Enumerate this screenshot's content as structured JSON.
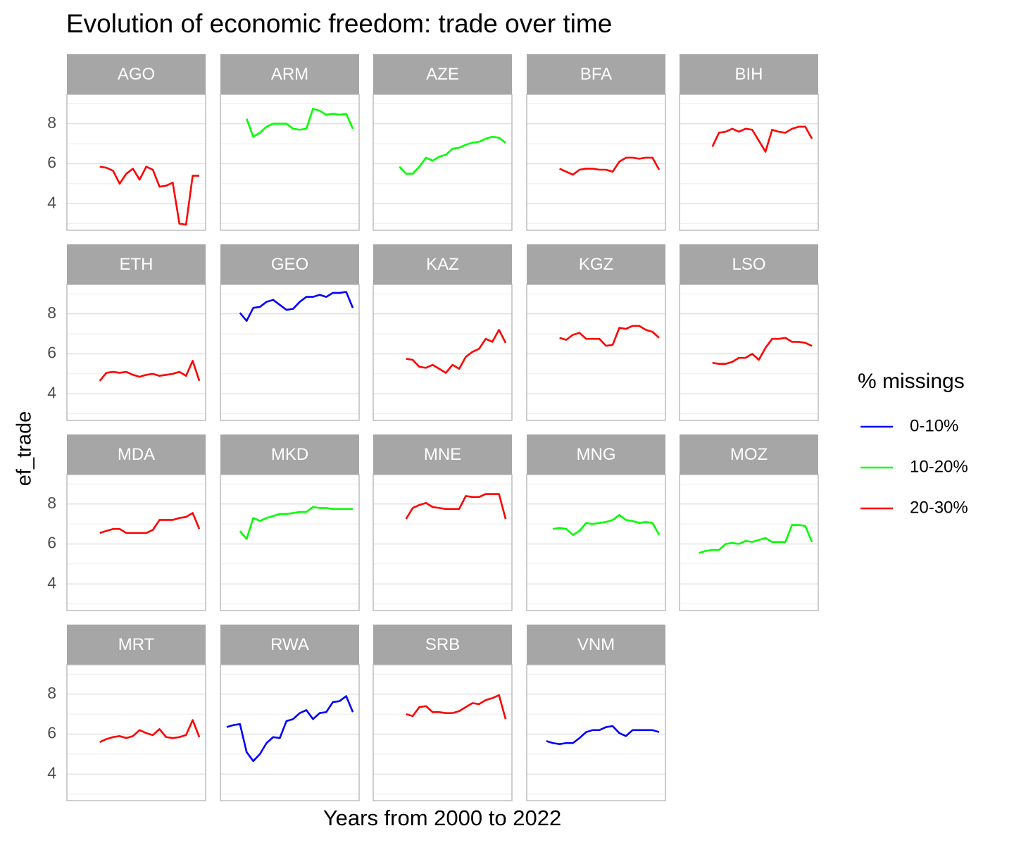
{
  "chart_data": {
    "type": "line",
    "title": "Evolution of economic freedom: trade over time",
    "xlabel": "Years from 2000 to 2022",
    "ylabel": "ef_trade",
    "legend_title": "% missings",
    "legend": [
      {
        "name": "0-10%",
        "color": "#0000ff"
      },
      {
        "name": "10-20%",
        "color": "#00ff00"
      },
      {
        "name": "20-30%",
        "color": "#ff0000"
      }
    ],
    "xlim": [
      2002.05,
      2022.95
    ],
    "ylim": [
      2.67,
      9.47
    ],
    "yticks": [
      4,
      6,
      8
    ],
    "yticks_minor": [
      3,
      5,
      7,
      9
    ],
    "grid": true,
    "panels": [
      {
        "name": "AGO",
        "color": "#ff0000",
        "x": [
          2007,
          2008,
          2009,
          2010,
          2011,
          2012,
          2013,
          2014,
          2015,
          2016,
          2017,
          2018,
          2019,
          2020,
          2021,
          2022
        ],
        "values": [
          5.85,
          5.8,
          5.65,
          5.0,
          5.5,
          5.75,
          5.2,
          5.85,
          5.7,
          4.85,
          4.9,
          5.05,
          3.0,
          2.95,
          5.4,
          5.4
        ]
      },
      {
        "name": "ARM",
        "color": "#00ff00",
        "x": [
          2006,
          2007,
          2008,
          2009,
          2010,
          2011,
          2012,
          2013,
          2014,
          2015,
          2016,
          2017,
          2018,
          2019,
          2020,
          2021,
          2022
        ],
        "values": [
          8.25,
          7.35,
          7.55,
          7.85,
          8.0,
          8.0,
          8.0,
          7.75,
          7.7,
          7.75,
          8.75,
          8.65,
          8.45,
          8.5,
          8.45,
          8.5,
          7.75
        ]
      },
      {
        "name": "AZE",
        "color": "#00ff00",
        "x": [
          2006,
          2007,
          2008,
          2009,
          2010,
          2011,
          2012,
          2013,
          2014,
          2015,
          2016,
          2017,
          2018,
          2019,
          2020,
          2021,
          2022
        ],
        "values": [
          5.85,
          5.5,
          5.5,
          5.85,
          6.3,
          6.15,
          6.35,
          6.45,
          6.75,
          6.8,
          6.95,
          7.05,
          7.1,
          7.25,
          7.35,
          7.3,
          7.05
        ]
      },
      {
        "name": "BFA",
        "color": "#ff0000",
        "x": [
          2007,
          2008,
          2009,
          2010,
          2011,
          2012,
          2013,
          2014,
          2015,
          2016,
          2017,
          2018,
          2019,
          2020,
          2021,
          2022
        ],
        "values": [
          5.75,
          5.6,
          5.45,
          5.7,
          5.75,
          5.75,
          5.7,
          5.7,
          5.6,
          6.1,
          6.3,
          6.3,
          6.25,
          6.3,
          6.3,
          5.7
        ]
      },
      {
        "name": "BIH",
        "color": "#ff0000",
        "x": [
          2007,
          2008,
          2009,
          2010,
          2011,
          2012,
          2013,
          2014,
          2015,
          2016,
          2017,
          2018,
          2019,
          2020,
          2021,
          2022
        ],
        "values": [
          6.85,
          7.55,
          7.6,
          7.75,
          7.6,
          7.75,
          7.7,
          7.15,
          6.6,
          7.7,
          7.6,
          7.55,
          7.75,
          7.85,
          7.85,
          7.25
        ]
      },
      {
        "name": "ETH",
        "color": "#ff0000",
        "x": [
          2007,
          2008,
          2009,
          2010,
          2011,
          2012,
          2013,
          2014,
          2015,
          2016,
          2017,
          2018,
          2019,
          2020,
          2021,
          2022
        ],
        "values": [
          4.65,
          5.05,
          5.1,
          5.05,
          5.1,
          4.95,
          4.85,
          4.95,
          5.0,
          4.9,
          4.95,
          5.0,
          5.1,
          4.9,
          5.65,
          4.65
        ]
      },
      {
        "name": "GEO",
        "color": "#0000ff",
        "x": [
          2005,
          2006,
          2007,
          2008,
          2009,
          2010,
          2011,
          2012,
          2013,
          2014,
          2015,
          2016,
          2017,
          2018,
          2019,
          2020,
          2021,
          2022
        ],
        "values": [
          8.05,
          7.65,
          8.3,
          8.35,
          8.6,
          8.7,
          8.45,
          8.2,
          8.25,
          8.6,
          8.85,
          8.85,
          8.95,
          8.85,
          9.05,
          9.05,
          9.1,
          8.3
        ]
      },
      {
        "name": "KAZ",
        "color": "#ff0000",
        "x": [
          2007,
          2008,
          2009,
          2010,
          2011,
          2012,
          2013,
          2014,
          2015,
          2016,
          2017,
          2018,
          2019,
          2020,
          2021,
          2022
        ],
        "values": [
          5.75,
          5.7,
          5.35,
          5.3,
          5.45,
          5.25,
          5.05,
          5.45,
          5.25,
          5.85,
          6.1,
          6.25,
          6.75,
          6.6,
          7.2,
          6.55
        ]
      },
      {
        "name": "KGZ",
        "color": "#ff0000",
        "x": [
          2007,
          2008,
          2009,
          2010,
          2011,
          2012,
          2013,
          2014,
          2015,
          2016,
          2017,
          2018,
          2019,
          2020,
          2021,
          2022
        ],
        "values": [
          6.8,
          6.7,
          6.95,
          7.05,
          6.75,
          6.75,
          6.75,
          6.4,
          6.45,
          7.3,
          7.25,
          7.4,
          7.4,
          7.2,
          7.1,
          6.8
        ]
      },
      {
        "name": "LSO",
        "color": "#ff0000",
        "x": [
          2007,
          2008,
          2009,
          2010,
          2011,
          2012,
          2013,
          2014,
          2015,
          2016,
          2017,
          2018,
          2019,
          2020,
          2021,
          2022
        ],
        "values": [
          5.55,
          5.5,
          5.5,
          5.6,
          5.8,
          5.8,
          6.0,
          5.7,
          6.3,
          6.75,
          6.75,
          6.8,
          6.6,
          6.6,
          6.55,
          6.4
        ]
      },
      {
        "name": "MDA",
        "color": "#ff0000",
        "x": [
          2007,
          2008,
          2009,
          2010,
          2011,
          2012,
          2013,
          2014,
          2015,
          2016,
          2017,
          2018,
          2019,
          2020,
          2021,
          2022
        ],
        "values": [
          6.55,
          6.65,
          6.75,
          6.75,
          6.55,
          6.55,
          6.55,
          6.55,
          6.7,
          7.2,
          7.2,
          7.2,
          7.3,
          7.35,
          7.55,
          6.75
        ]
      },
      {
        "name": "MKD",
        "color": "#00ff00",
        "x": [
          2005,
          2006,
          2007,
          2008,
          2009,
          2010,
          2011,
          2012,
          2013,
          2014,
          2015,
          2016,
          2017,
          2018,
          2019,
          2020,
          2021,
          2022
        ],
        "values": [
          6.65,
          6.25,
          7.3,
          7.15,
          7.3,
          7.4,
          7.5,
          7.5,
          7.55,
          7.6,
          7.6,
          7.85,
          7.8,
          7.8,
          7.75,
          7.75,
          7.75,
          7.75
        ]
      },
      {
        "name": "MNE",
        "color": "#ff0000",
        "x": [
          2007,
          2008,
          2009,
          2010,
          2011,
          2012,
          2013,
          2014,
          2015,
          2016,
          2017,
          2018,
          2019,
          2020,
          2021,
          2022
        ],
        "values": [
          7.25,
          7.8,
          7.95,
          8.05,
          7.85,
          7.8,
          7.75,
          7.75,
          7.75,
          8.4,
          8.35,
          8.35,
          8.5,
          8.5,
          8.5,
          7.25
        ]
      },
      {
        "name": "MNG",
        "color": "#00ff00",
        "x": [
          2006,
          2007,
          2008,
          2009,
          2010,
          2011,
          2012,
          2013,
          2014,
          2015,
          2016,
          2017,
          2018,
          2019,
          2020,
          2021,
          2022
        ],
        "values": [
          6.75,
          6.8,
          6.75,
          6.45,
          6.65,
          7.05,
          7.0,
          7.05,
          7.1,
          7.2,
          7.45,
          7.2,
          7.15,
          7.05,
          7.1,
          7.05,
          6.45
        ]
      },
      {
        "name": "MOZ",
        "color": "#00ff00",
        "x": [
          2005,
          2006,
          2007,
          2008,
          2009,
          2010,
          2011,
          2012,
          2013,
          2014,
          2015,
          2016,
          2017,
          2018,
          2019,
          2020,
          2021,
          2022
        ],
        "values": [
          5.55,
          5.65,
          5.7,
          5.7,
          6.0,
          6.05,
          6.0,
          6.15,
          6.1,
          6.2,
          6.3,
          6.1,
          6.1,
          6.1,
          6.95,
          6.95,
          6.9,
          6.1
        ]
      },
      {
        "name": "MRT",
        "color": "#ff0000",
        "x": [
          2007,
          2008,
          2009,
          2010,
          2011,
          2012,
          2013,
          2014,
          2015,
          2016,
          2017,
          2018,
          2019,
          2020,
          2021,
          2022
        ],
        "values": [
          5.6,
          5.75,
          5.85,
          5.9,
          5.8,
          5.9,
          6.2,
          6.05,
          5.95,
          6.25,
          5.85,
          5.8,
          5.85,
          5.95,
          6.7,
          5.85
        ]
      },
      {
        "name": "RWA",
        "color": "#0000ff",
        "x": [
          2003,
          2004,
          2005,
          2006,
          2007,
          2008,
          2009,
          2010,
          2011,
          2012,
          2013,
          2014,
          2015,
          2016,
          2017,
          2018,
          2019,
          2020,
          2021,
          2022
        ],
        "values": [
          6.35,
          6.45,
          6.5,
          5.1,
          4.65,
          5.0,
          5.55,
          5.85,
          5.8,
          6.65,
          6.75,
          7.05,
          7.2,
          6.75,
          7.05,
          7.1,
          7.6,
          7.65,
          7.9,
          7.1
        ]
      },
      {
        "name": "SRB",
        "color": "#ff0000",
        "x": [
          2007,
          2008,
          2009,
          2010,
          2011,
          2012,
          2013,
          2014,
          2015,
          2016,
          2017,
          2018,
          2019,
          2020,
          2021,
          2022
        ],
        "values": [
          7.0,
          6.9,
          7.35,
          7.4,
          7.1,
          7.1,
          7.05,
          7.05,
          7.15,
          7.35,
          7.55,
          7.5,
          7.7,
          7.8,
          7.95,
          6.75
        ]
      },
      {
        "name": "VNM",
        "color": "#0000ff",
        "x": [
          2005,
          2006,
          2007,
          2008,
          2009,
          2010,
          2011,
          2012,
          2013,
          2014,
          2015,
          2016,
          2017,
          2018,
          2019,
          2020,
          2021,
          2022
        ],
        "values": [
          5.65,
          5.55,
          5.5,
          5.55,
          5.55,
          5.8,
          6.1,
          6.2,
          6.2,
          6.35,
          6.4,
          6.05,
          5.9,
          6.2,
          6.2,
          6.2,
          6.2,
          6.1
        ]
      }
    ]
  }
}
